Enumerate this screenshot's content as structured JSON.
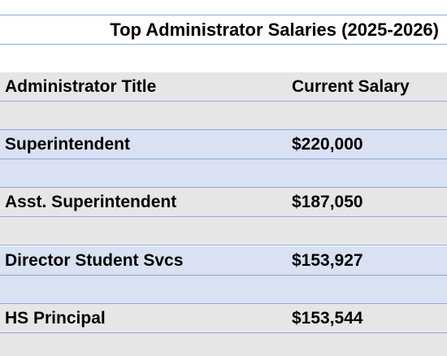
{
  "table": {
    "title": "Top Administrator Salaries (2025-2026)",
    "headers": [
      "Administrator Title",
      "Current Salary"
    ],
    "rows": [
      {
        "title": "Superintendent",
        "salary": "$220,000"
      },
      {
        "title": "Asst. Superintendent",
        "salary": "$187,050"
      },
      {
        "title": "Director Student Svcs",
        "salary": "$153,927"
      },
      {
        "title": "HS Principal",
        "salary": "$153,544"
      }
    ]
  },
  "colors": {
    "gray_fill": "#e7e6e6",
    "blue_fill": "#d9e1f2",
    "rule": "#8ea9db"
  }
}
